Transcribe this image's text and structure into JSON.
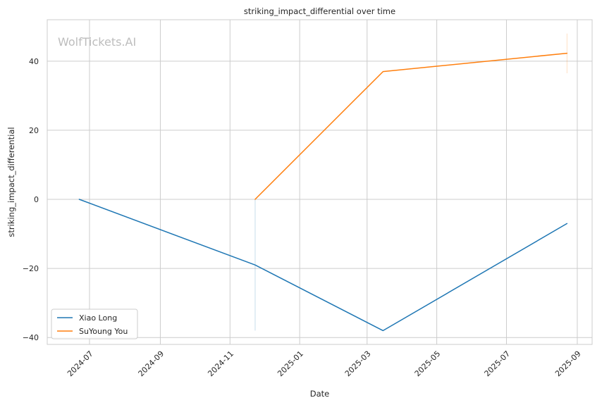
{
  "chart_data": {
    "type": "line",
    "title": "striking_impact_differential over time",
    "xlabel": "Date",
    "ylabel": "striking_impact_differential",
    "watermark": "WolfTickets.AI",
    "xlim": [
      "2024-05-25",
      "2025-09-14"
    ],
    "ylim": [
      -42,
      52
    ],
    "x_ticks": [
      "2024-07-01",
      "2024-09-01",
      "2024-11-01",
      "2025-01-01",
      "2025-03-01",
      "2025-05-01",
      "2025-07-01",
      "2025-09-01"
    ],
    "x_tick_labels": [
      "2024-07",
      "2024-09",
      "2024-11",
      "2025-01",
      "2025-03",
      "2025-05",
      "2025-07",
      "2025-09"
    ],
    "y_ticks": [
      -40,
      -20,
      0,
      20,
      40
    ],
    "y_tick_labels": [
      "−40",
      "−20",
      "0",
      "20",
      "40"
    ],
    "grid": true,
    "legend_position": "lower-left",
    "series": [
      {
        "name": "Xiao Long",
        "color": "#1f77b4",
        "x": [
          "2024-06-22",
          "2024-11-23",
          "2025-03-15",
          "2025-08-23"
        ],
        "y": [
          0,
          -19,
          -38,
          -7
        ],
        "error_bars": [
          {
            "x": "2024-11-23",
            "low": -38,
            "high": 0
          }
        ]
      },
      {
        "name": "SuYoung You",
        "color": "#ff7f0e",
        "x": [
          "2024-11-23",
          "2025-03-15",
          "2025-08-23"
        ],
        "y": [
          0,
          37,
          42.3
        ],
        "error_bars": [
          {
            "x": "2025-08-23",
            "low": 36.5,
            "high": 48
          }
        ]
      }
    ]
  }
}
